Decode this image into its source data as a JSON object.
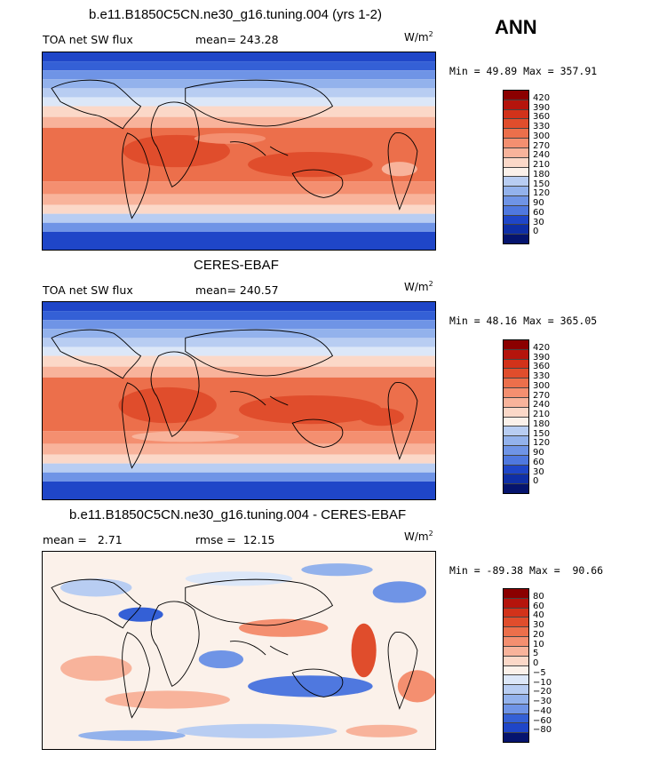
{
  "header": {
    "season": "ANN"
  },
  "colors": {
    "pos": [
      "#8b0000",
      "#b5140c",
      "#d2321a",
      "#e04d2c",
      "#ec6f4b",
      "#f48f70",
      "#f8b39b",
      "#fbd8c8",
      "#fbf1ea"
    ],
    "neg": [
      "#dce7f8",
      "#b8cdf2",
      "#93b2ec",
      "#6f94e6",
      "#4f78df",
      "#3460d6",
      "#1f46c8",
      "#0f2fa6",
      "#05146e"
    ]
  },
  "panels": [
    {
      "id": "model",
      "title": "b.e11.B1850C5CN.ne30_g16.tuning.004 (yrs 1-2)",
      "left_label": "TOA net SW flux",
      "mid_label": "mean= 243.28",
      "units": "W/m",
      "units_exp": "2",
      "stats": "Min =  49.89 Max = 357.91",
      "levels": [
        "420",
        "390",
        "360",
        "330",
        "300",
        "270",
        "240",
        "210",
        "180",
        "150",
        "120",
        "90",
        "60",
        "30",
        "0"
      ],
      "bar_colors": [
        "#8b0000",
        "#b5140c",
        "#d2321a",
        "#e04d2c",
        "#ec6f4b",
        "#f48f70",
        "#f8b39b",
        "#fbd8c8",
        "#fbf1ea",
        "#b8cdf2",
        "#93b2ec",
        "#6f94e6",
        "#4f78df",
        "#1f46c8",
        "#0f2fa6",
        "#05146e"
      ]
    },
    {
      "id": "obs",
      "title": "CERES-EBAF",
      "left_label": "TOA net SW flux",
      "mid_label": "mean= 240.57",
      "units": "W/m",
      "units_exp": "2",
      "stats": "Min =  48.16 Max = 365.05",
      "levels": [
        "420",
        "390",
        "360",
        "330",
        "300",
        "270",
        "240",
        "210",
        "180",
        "150",
        "120",
        "90",
        "60",
        "30",
        "0"
      ],
      "bar_colors": [
        "#8b0000",
        "#b5140c",
        "#d2321a",
        "#e04d2c",
        "#ec6f4b",
        "#f48f70",
        "#f8b39b",
        "#fbd8c8",
        "#fbf1ea",
        "#b8cdf2",
        "#93b2ec",
        "#6f94e6",
        "#4f78df",
        "#1f46c8",
        "#0f2fa6",
        "#05146e"
      ]
    },
    {
      "id": "diff",
      "title": "b.e11.B1850C5CN.ne30_g16.tuning.004 - CERES-EBAF",
      "left_label": "mean =   2.71",
      "mid_label": "rmse =  12.15",
      "units": "W/m",
      "units_exp": "2",
      "stats": "Min = -89.38 Max =  90.66",
      "levels": [
        "80",
        "60",
        "40",
        "30",
        "20",
        "10",
        "5",
        "0",
        "−5",
        "−10",
        "−20",
        "−30",
        "−40",
        "−60",
        "−80"
      ],
      "bar_colors": [
        "#8b0000",
        "#b5140c",
        "#d2321a",
        "#e04d2c",
        "#ec6f4b",
        "#f48f70",
        "#f8b39b",
        "#fbd8c8",
        "#fbf1ea",
        "#dce7f8",
        "#b8cdf2",
        "#93b2ec",
        "#6f94e6",
        "#3460d6",
        "#1f46c8",
        "#05146e"
      ]
    }
  ]
}
